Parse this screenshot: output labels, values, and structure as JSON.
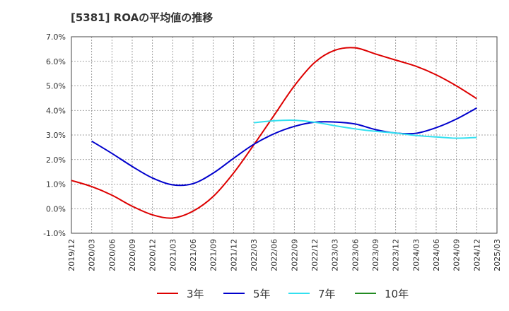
{
  "chart_data": {
    "type": "line",
    "title": "[5381]  ROAの平均値の推移",
    "xlabel": "",
    "ylabel": "",
    "ylim": [
      -1.0,
      7.0
    ],
    "y_ticks": [
      "-1.0%",
      "0.0%",
      "1.0%",
      "2.0%",
      "3.0%",
      "4.0%",
      "5.0%",
      "6.0%",
      "7.0%"
    ],
    "y_tick_values": [
      -1,
      0,
      1,
      2,
      3,
      4,
      5,
      6,
      7
    ],
    "x_ticks": [
      "2019/12",
      "2020/03",
      "2020/06",
      "2020/09",
      "2020/12",
      "2021/03",
      "2021/06",
      "2021/09",
      "2021/12",
      "2022/03",
      "2022/06",
      "2022/09",
      "2022/12",
      "2023/03",
      "2023/06",
      "2023/09",
      "2023/12",
      "2024/03",
      "2024/06",
      "2024/09",
      "2024/12",
      "2025/03"
    ],
    "grid": true,
    "legend_position": "bottom",
    "series": [
      {
        "name": "3年",
        "color": "#dd0000",
        "points": [
          [
            "2019/12",
            1.15
          ],
          [
            "2020/03",
            0.9
          ],
          [
            "2020/06",
            0.55
          ],
          [
            "2020/09",
            0.1
          ],
          [
            "2020/12",
            -0.25
          ],
          [
            "2021/03",
            -0.38
          ],
          [
            "2021/06",
            -0.1
          ],
          [
            "2021/09",
            0.5
          ],
          [
            "2021/12",
            1.45
          ],
          [
            "2022/03",
            2.6
          ],
          [
            "2022/06",
            3.8
          ],
          [
            "2022/09",
            5.0
          ],
          [
            "2022/12",
            5.95
          ],
          [
            "2023/03",
            6.45
          ],
          [
            "2023/06",
            6.55
          ],
          [
            "2023/09",
            6.3
          ],
          [
            "2023/12",
            6.05
          ],
          [
            "2024/03",
            5.8
          ],
          [
            "2024/06",
            5.45
          ],
          [
            "2024/09",
            5.0
          ],
          [
            "2024/12",
            4.48
          ]
        ]
      },
      {
        "name": "5年",
        "color": "#0000cc",
        "points": [
          [
            "2020/03",
            2.75
          ],
          [
            "2020/06",
            2.25
          ],
          [
            "2020/09",
            1.72
          ],
          [
            "2020/12",
            1.25
          ],
          [
            "2021/03",
            0.97
          ],
          [
            "2021/06",
            1.02
          ],
          [
            "2021/09",
            1.45
          ],
          [
            "2021/12",
            2.05
          ],
          [
            "2022/03",
            2.62
          ],
          [
            "2022/06",
            3.05
          ],
          [
            "2022/09",
            3.35
          ],
          [
            "2022/12",
            3.52
          ],
          [
            "2023/03",
            3.53
          ],
          [
            "2023/06",
            3.45
          ],
          [
            "2023/09",
            3.22
          ],
          [
            "2023/12",
            3.08
          ],
          [
            "2024/03",
            3.07
          ],
          [
            "2024/06",
            3.3
          ],
          [
            "2024/09",
            3.65
          ],
          [
            "2024/12",
            4.1
          ]
        ]
      },
      {
        "name": "7年",
        "color": "#33e0f0",
        "points": [
          [
            "2022/03",
            3.5
          ],
          [
            "2022/06",
            3.58
          ],
          [
            "2022/09",
            3.6
          ],
          [
            "2022/12",
            3.52
          ],
          [
            "2023/03",
            3.38
          ],
          [
            "2023/06",
            3.25
          ],
          [
            "2023/09",
            3.15
          ],
          [
            "2023/12",
            3.08
          ],
          [
            "2024/03",
            2.98
          ],
          [
            "2024/06",
            2.92
          ],
          [
            "2024/09",
            2.87
          ],
          [
            "2024/12",
            2.9
          ]
        ]
      },
      {
        "name": "10年",
        "color": "#228b22",
        "points": []
      }
    ]
  }
}
